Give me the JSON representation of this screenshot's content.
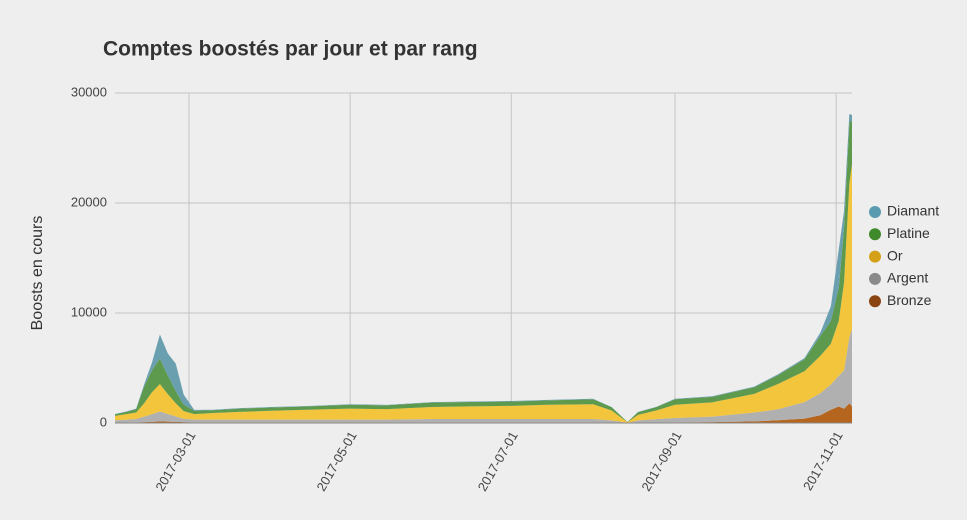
{
  "chart_data": {
    "type": "stacked-area",
    "title": "Comptes boostés par jour et par rang",
    "y_label": "Boosts en cours",
    "x": [
      "2017-02-01",
      "2017-02-05",
      "2017-02-09",
      "2017-02-12",
      "2017-02-15",
      "2017-02-18",
      "2017-02-21",
      "2017-02-24",
      "2017-02-27",
      "2017-03-03",
      "2017-03-10",
      "2017-03-20",
      "2017-04-01",
      "2017-04-15",
      "2017-05-01",
      "2017-05-15",
      "2017-06-01",
      "2017-06-15",
      "2017-07-01",
      "2017-07-15",
      "2017-08-01",
      "2017-08-08",
      "2017-08-14",
      "2017-08-18",
      "2017-08-25",
      "2017-09-01",
      "2017-09-15",
      "2017-10-01",
      "2017-10-10",
      "2017-10-20",
      "2017-10-26",
      "2017-10-30",
      "2017-11-02",
      "2017-11-04",
      "2017-11-06",
      "2017-11-07"
    ],
    "series": [
      {
        "name": "Diamant",
        "color": "#6a9fb0",
        "legend_color": "#5b9bb0",
        "values": [
          20,
          30,
          50,
          200,
          700,
          2200,
          2000,
          2500,
          900,
          80,
          50,
          40,
          40,
          40,
          40,
          40,
          40,
          40,
          40,
          40,
          40,
          20,
          0,
          20,
          30,
          40,
          50,
          60,
          80,
          100,
          300,
          1300,
          3500,
          1500,
          800,
          500
        ]
      },
      {
        "name": "Platine",
        "color": "#5e9a4e",
        "legend_color": "#3f8a2a",
        "values": [
          150,
          200,
          300,
          1500,
          2000,
          2300,
          1700,
          1100,
          600,
          300,
          250,
          300,
          300,
          300,
          350,
          350,
          400,
          400,
          400,
          400,
          450,
          300,
          20,
          250,
          300,
          500,
          500,
          600,
          800,
          1100,
          1800,
          2100,
          3000,
          5000,
          5500,
          4000
        ]
      },
      {
        "name": "Or",
        "color": "#f2c53d",
        "legend_color": "#d4a017",
        "values": [
          400,
          500,
          600,
          1200,
          2000,
          2500,
          1800,
          1200,
          700,
          500,
          600,
          700,
          800,
          900,
          1000,
          950,
          1100,
          1150,
          1200,
          1300,
          1350,
          900,
          50,
          500,
          800,
          1200,
          1300,
          1700,
          2300,
          2800,
          3400,
          3700,
          5000,
          8000,
          14000,
          15000
        ]
      },
      {
        "name": "Argent",
        "color": "#b0b0b0",
        "legend_color": "#8a8a8a",
        "values": [
          200,
          250,
          300,
          500,
          700,
          900,
          700,
          500,
          300,
          250,
          250,
          250,
          250,
          250,
          250,
          250,
          300,
          300,
          300,
          300,
          300,
          200,
          20,
          200,
          300,
          400,
          500,
          800,
          1000,
          1500,
          2000,
          2300,
          2800,
          3500,
          6000,
          7000
        ]
      },
      {
        "name": "Bronze",
        "color": "#b5651d",
        "legend_color": "#8b4513",
        "values": [
          50,
          50,
          60,
          80,
          100,
          150,
          120,
          100,
          80,
          60,
          60,
          60,
          60,
          60,
          60,
          60,
          60,
          60,
          60,
          60,
          60,
          40,
          0,
          40,
          50,
          60,
          80,
          150,
          250,
          400,
          700,
          1200,
          1500,
          1300,
          1800,
          1500
        ]
      }
    ],
    "xlim": [
      "2017-02-01",
      "2017-11-07"
    ],
    "xticks": [
      "2017-03-01",
      "2017-05-01",
      "2017-07-01",
      "2017-09-01",
      "2017-11-01"
    ],
    "ylim": [
      0,
      30000
    ],
    "yticks": [
      0,
      10000,
      20000,
      30000
    ],
    "grid": true
  }
}
